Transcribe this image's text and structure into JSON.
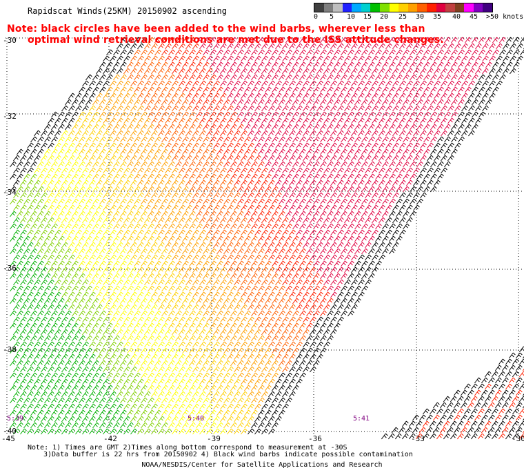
{
  "title": "Rapidscat Winds(25KM) 20150902 ascending",
  "note_line1": "Note: black circles have been added to the wind barbs, wherever less than",
  "note_line2": "optimal wind retrieval conditions are met due to the ISS attitude changes.",
  "legend": {
    "colors": [
      "#404040",
      "#7f7f7f",
      "#bfbfbf",
      "#2020ff",
      "#00aaff",
      "#00d0d0",
      "#00c000",
      "#80e000",
      "#ffff00",
      "#ffd000",
      "#ffa000",
      "#ff6000",
      "#ff2000",
      "#e00040",
      "#c04040",
      "#804020",
      "#ff00ff",
      "#8000c0",
      "#400080"
    ],
    "ticks": [
      "0",
      "5",
      "10",
      "15",
      "20",
      "25",
      "30",
      "35",
      "40",
      "45",
      ">50 knots"
    ]
  },
  "lat_labels": [
    "-30",
    "-32",
    "-34",
    "-36",
    "-38",
    "-40"
  ],
  "lon_labels": [
    "-45",
    "-42",
    "-39",
    "-36",
    "-33",
    "-30"
  ],
  "time_labels": [
    "5:39",
    "5:40",
    "5:41"
  ],
  "footer_line1": "Note: 1) Times are GMT 2)Times along bottom correspond to measurement at -30S",
  "footer_line2": "3)Data buffer is 22 hrs from 20150902 4) Black wind barbs indicate possible contamination",
  "credit": "NOAA/NESDIS/Center for Satellite Applications and Research"
}
